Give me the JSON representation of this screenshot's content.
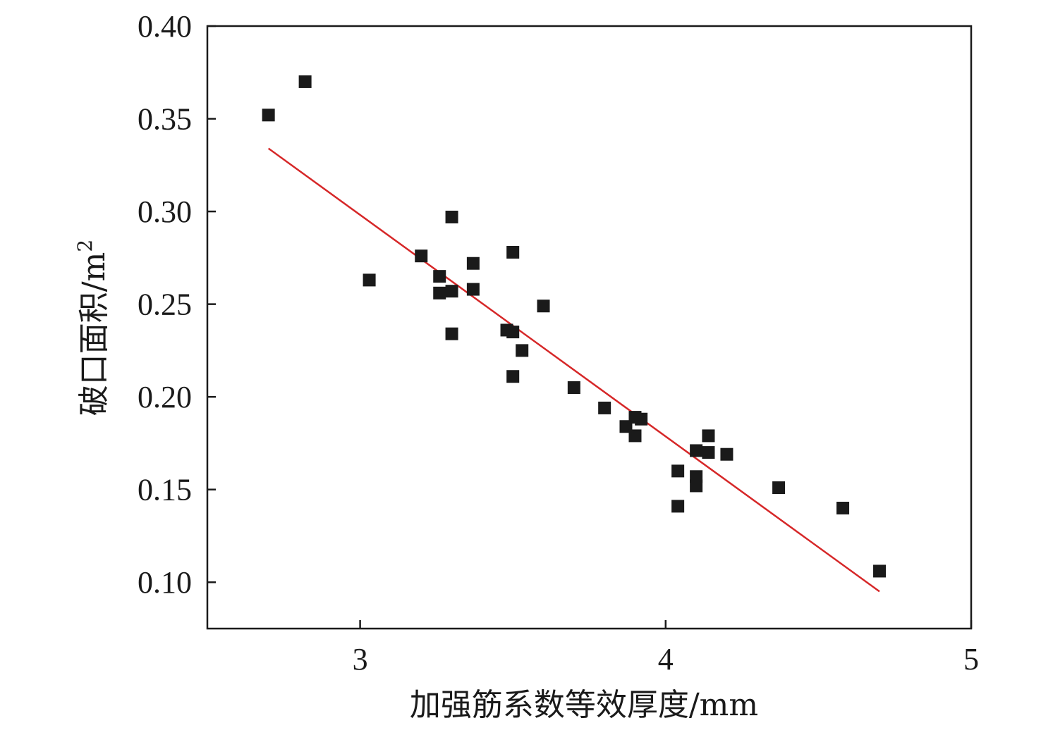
{
  "chart_data": {
    "type": "scatter",
    "title": "",
    "xlabel": "加强筋系数等效厚度/mm",
    "ylabel_main": "破口面积/m",
    "ylabel_sup": "2",
    "xlim": [
      2.5,
      5.0
    ],
    "ylim": [
      0.075,
      0.4
    ],
    "x_ticks": [
      3,
      4,
      5
    ],
    "y_ticks": [
      0.1,
      0.15,
      0.2,
      0.25,
      0.3,
      0.35,
      0.4
    ],
    "y_tick_labels": [
      "0.10",
      "0.15",
      "0.20",
      "0.25",
      "0.30",
      "0.35",
      "0.40"
    ],
    "x_tick_labels": [
      "3",
      "4",
      "5"
    ],
    "grid": false,
    "series": [
      {
        "marker": "square",
        "color": "#1a1a1a",
        "points": [
          [
            2.7,
            0.352
          ],
          [
            2.82,
            0.37
          ],
          [
            3.03,
            0.263
          ],
          [
            3.2,
            0.276
          ],
          [
            3.26,
            0.265
          ],
          [
            3.26,
            0.256
          ],
          [
            3.3,
            0.257
          ],
          [
            3.3,
            0.297
          ],
          [
            3.3,
            0.234
          ],
          [
            3.37,
            0.272
          ],
          [
            3.37,
            0.258
          ],
          [
            3.48,
            0.236
          ],
          [
            3.5,
            0.278
          ],
          [
            3.5,
            0.235
          ],
          [
            3.5,
            0.211
          ],
          [
            3.53,
            0.225
          ],
          [
            3.6,
            0.249
          ],
          [
            3.7,
            0.205
          ],
          [
            3.8,
            0.194
          ],
          [
            3.87,
            0.184
          ],
          [
            3.9,
            0.189
          ],
          [
            3.9,
            0.179
          ],
          [
            3.92,
            0.188
          ],
          [
            4.04,
            0.16
          ],
          [
            4.04,
            0.141
          ],
          [
            4.1,
            0.171
          ],
          [
            4.1,
            0.157
          ],
          [
            4.1,
            0.152
          ],
          [
            4.14,
            0.179
          ],
          [
            4.14,
            0.17
          ],
          [
            4.2,
            0.169
          ],
          [
            4.37,
            0.151
          ],
          [
            4.58,
            0.14
          ],
          [
            4.7,
            0.106
          ]
        ]
      },
      {
        "kind": "fit-line",
        "color": "#d62728",
        "x": [
          2.7,
          4.7
        ],
        "y": [
          0.334,
          0.095
        ]
      }
    ]
  }
}
